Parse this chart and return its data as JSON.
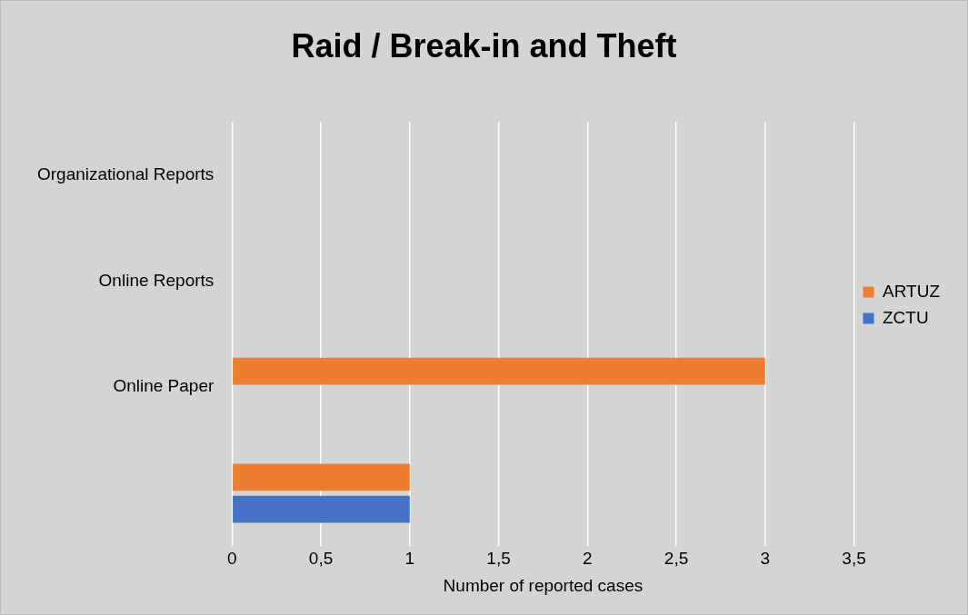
{
  "chart_data": {
    "type": "bar",
    "orientation": "horizontal",
    "title": "Raid / Break-in and Theft",
    "xlabel": "Number of reported cases",
    "categories": [
      "Organizational Reports",
      "Online Reports",
      "Online Paper",
      null
    ],
    "series": [
      {
        "name": "ARTUZ",
        "color": "#ed7d31",
        "values": [
          null,
          null,
          3,
          1
        ]
      },
      {
        "name": "ZCTU",
        "color": "#4472c4",
        "values": [
          null,
          null,
          null,
          1
        ]
      }
    ],
    "xlim": [
      0,
      3.5
    ],
    "xticks": [
      0,
      {
        "value": 0.5,
        "label": "0,5"
      },
      1,
      {
        "value": 1.5,
        "label": "1,5"
      },
      2,
      {
        "value": 2.5,
        "label": "2,5"
      },
      3,
      {
        "value": 3.5,
        "label": "3,5"
      }
    ],
    "grid": "x",
    "legend": "right"
  }
}
